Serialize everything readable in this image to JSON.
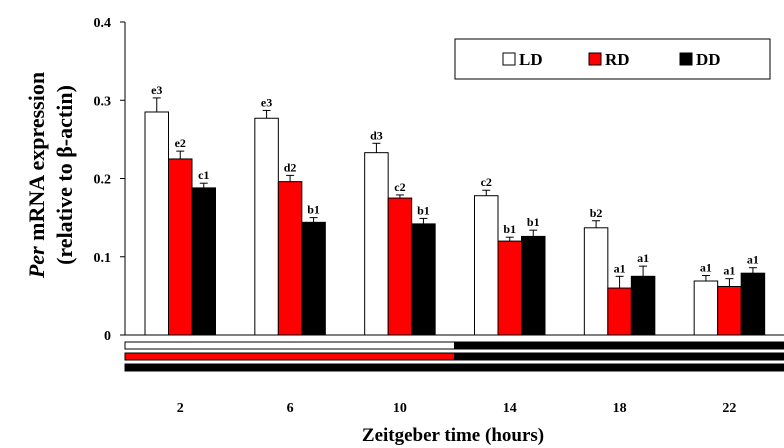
{
  "chart_data": {
    "type": "bar",
    "categories": [
      "2",
      "6",
      "10",
      "14",
      "18",
      "22"
    ],
    "series": [
      {
        "name": "LD",
        "color": "#ffffff",
        "values": [
          0.285,
          0.277,
          0.233,
          0.178,
          0.137,
          0.069
        ],
        "errors": [
          0.018,
          0.01,
          0.012,
          0.007,
          0.009,
          0.007
        ],
        "labels": [
          "e3",
          "e3",
          "d3",
          "c2",
          "b2",
          "a1"
        ]
      },
      {
        "name": "RD",
        "color": "#ff0000",
        "values": [
          0.225,
          0.196,
          0.175,
          0.12,
          0.06,
          0.062
        ],
        "errors": [
          0.01,
          0.008,
          0.004,
          0.005,
          0.015,
          0.01
        ],
        "labels": [
          "e2",
          "d2",
          "c2",
          "b1",
          "a1",
          "a1"
        ]
      },
      {
        "name": "DD",
        "color": "#000000",
        "values": [
          0.188,
          0.144,
          0.142,
          0.126,
          0.075,
          0.079
        ],
        "errors": [
          0.006,
          0.006,
          0.007,
          0.008,
          0.013,
          0.007
        ],
        "labels": [
          "c1",
          "b1",
          "b1",
          "b1",
          "a1",
          "a1"
        ]
      }
    ],
    "yticks": [
      "0",
      "0.1",
      "0.2",
      "0.3",
      "0.4"
    ],
    "ylim": [
      0,
      0.4
    ],
    "xlabel": "Zeitgeber time (hours)",
    "ylabel_italic": "Per",
    "ylabel_line1_rest": " mRNA expression",
    "ylabel_line2": "(relative to β-actin)",
    "legend_position": "top-right",
    "light_regime_bars": [
      {
        "name": "LD",
        "light_color": "#ffffff",
        "dark_color": "#000000",
        "light_until_hour": 12
      },
      {
        "name": "RD",
        "light_color": "#ff0000",
        "dark_color": "#000000",
        "light_until_hour": 12
      },
      {
        "name": "DD",
        "light_color": "#000000",
        "dark_color": "#000000",
        "light_until_hour": 12
      }
    ]
  }
}
